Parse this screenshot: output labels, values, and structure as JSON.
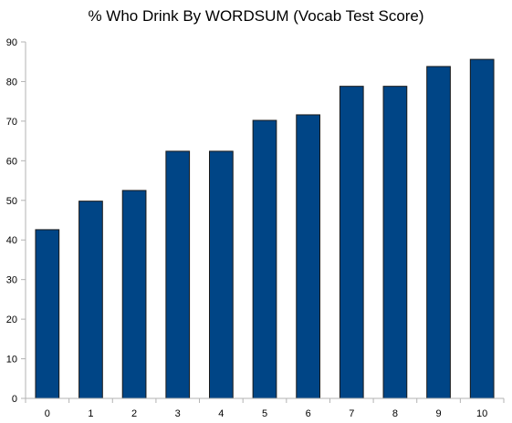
{
  "chart_data": {
    "type": "bar",
    "title": "% Who Drink By WORDSUM (Vocab Test Score)",
    "xlabel": "",
    "ylabel": "",
    "categories": [
      "0",
      "1",
      "2",
      "3",
      "4",
      "5",
      "6",
      "7",
      "8",
      "9",
      "10"
    ],
    "values": [
      42.6,
      49.8,
      52.5,
      62.4,
      62.4,
      70.2,
      71.6,
      78.8,
      78.8,
      83.8,
      85.6
    ],
    "ylim": [
      0,
      90
    ],
    "yticks": [
      "0",
      "10",
      "20",
      "30",
      "40",
      "50",
      "60",
      "70",
      "80",
      "90"
    ],
    "grid": false,
    "legend": "none",
    "colors": {
      "bar": "#004586",
      "bar_edge": "#1a1a1a",
      "axis": "#b3b3b3"
    }
  }
}
